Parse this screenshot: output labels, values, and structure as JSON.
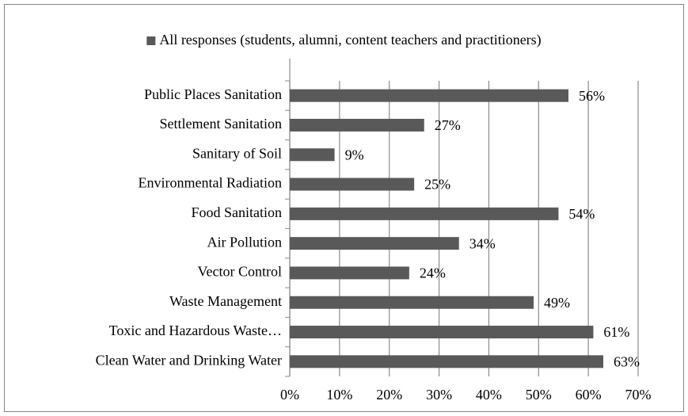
{
  "chart_data": {
    "type": "bar",
    "orientation": "horizontal",
    "categories": [
      "Public Places Sanitation",
      "Settlement Sanitation",
      "Sanitary of Soil",
      "Environmental Radiation",
      "Food Sanitation",
      "Air Pollution",
      "Vector Control",
      "Waste Management",
      "Toxic and Hazardous Waste…",
      "Clean Water and Drinking Water"
    ],
    "series": [
      {
        "name": "All responses (students, alumni, content teachers and practitioners)",
        "color": "#595959",
        "values": [
          56,
          27,
          9,
          25,
          54,
          34,
          24,
          49,
          61,
          63
        ],
        "value_labels": [
          "56%",
          "27%",
          "9%",
          "25%",
          "54%",
          "34%",
          "24%",
          "49%",
          "61%",
          "63%"
        ]
      }
    ],
    "xlim": [
      0,
      70
    ],
    "xticks": [
      {
        "value": 0,
        "label": "0%"
      },
      {
        "value": 10,
        "label": "10%"
      },
      {
        "value": 20,
        "label": "20%"
      },
      {
        "value": 30,
        "label": "30%"
      },
      {
        "value": 40,
        "label": "40%"
      },
      {
        "value": 50,
        "label": "50%"
      },
      {
        "value": 60,
        "label": "60%"
      },
      {
        "value": 70,
        "label": "70%"
      }
    ],
    "grid": true,
    "legend": "top"
  }
}
